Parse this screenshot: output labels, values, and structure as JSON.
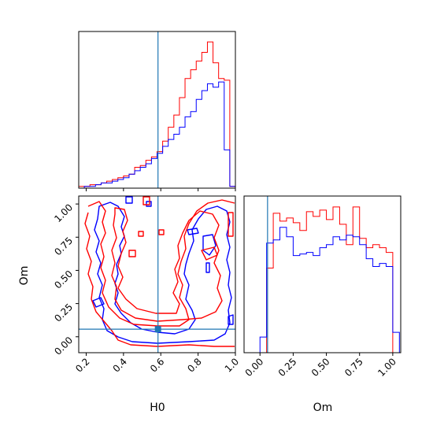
{
  "chart_data": {
    "type": "corner",
    "parameters": [
      "H0",
      "Om"
    ],
    "colors": {
      "red": "#ff0000",
      "blue": "#0000ff",
      "truth": "#1f77b4"
    },
    "truth": {
      "H0": 0.585,
      "Om": 0.057
    },
    "ticks": {
      "H0": {
        "values": [
          0.2,
          0.4,
          0.6,
          0.8,
          1.0
        ],
        "labels": [
          "0.2",
          "0.4",
          "0.6",
          "0.8",
          "1.0"
        ]
      },
      "Om": {
        "values": [
          0.0,
          0.25,
          0.5,
          0.75,
          1.0
        ],
        "labels": [
          "0.00",
          "0.25",
          "0.50",
          "0.75",
          "1.00"
        ]
      }
    },
    "ranges": {
      "H0": [
        0.16,
        1.0
      ],
      "Om": [
        -0.12,
        1.06
      ]
    },
    "hist_H0": {
      "bin_start": 0.16,
      "bin_width": 0.03,
      "red": [
        1,
        1,
        2,
        2,
        3,
        4,
        5,
        6,
        7,
        8,
        12,
        13,
        16,
        18,
        21,
        27,
        35,
        42,
        52,
        63,
        68,
        73,
        78,
        84,
        72,
        63,
        62,
        1
      ],
      "blue": [
        0,
        1,
        1,
        2,
        3,
        3,
        4,
        5,
        6,
        8,
        10,
        12,
        14,
        17,
        20,
        24,
        28,
        31,
        35,
        41,
        44,
        51,
        56,
        60,
        58,
        61,
        22,
        1
      ],
      "ylim": [
        0,
        90
      ]
    },
    "hist_Om": {
      "bin_start": -0.05,
      "bin_width": 0.05,
      "red": [
        0,
        0,
        54,
        89,
        84,
        86,
        83,
        78,
        90,
        87,
        91,
        85,
        93,
        82,
        69,
        93,
        73,
        67,
        69,
        67,
        64,
        0
      ],
      "blue": [
        0,
        10,
        70,
        72,
        80,
        74,
        62,
        63,
        64,
        62,
        67,
        69,
        74,
        72,
        75,
        74,
        69,
        60,
        55,
        57,
        55,
        13
      ],
      "ylim": [
        0,
        100
      ]
    }
  }
}
